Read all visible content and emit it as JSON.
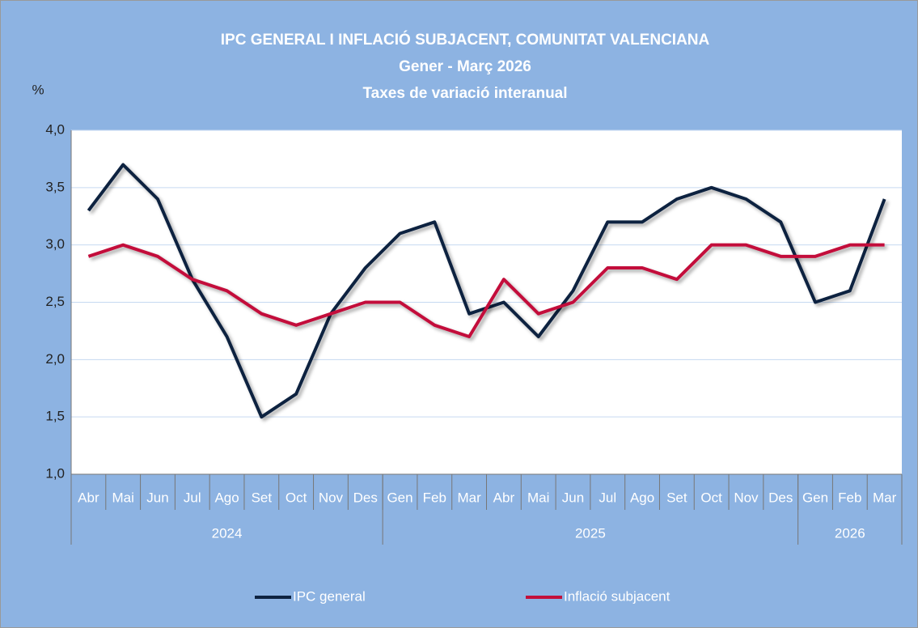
{
  "chart_data": {
    "type": "line",
    "title": [
      "IPC GENERAL I INFLACIÓ SUBJACENT, COMUNITAT VALENCIANA",
      "Gener - Març 2026",
      "Taxes de variació interanual"
    ],
    "y_label": "%",
    "categories": [
      "Abr",
      "Mai",
      "Jun",
      "Jul",
      "Ago",
      "Set",
      "Oct",
      "Nov",
      "Des",
      "Gen",
      "Feb",
      "Mar",
      "Abr",
      "Mai",
      "Jun",
      "Jul",
      "Ago",
      "Set",
      "Oct",
      "Nov",
      "Des",
      "Gen",
      "Feb",
      "Mar"
    ],
    "groups": [
      {
        "label": "2024",
        "span": 9
      },
      {
        "label": "2025",
        "span": 12
      },
      {
        "label": "2026",
        "span": 3
      }
    ],
    "series": [
      {
        "name": "IPC general",
        "color": "#0e2341",
        "values": [
          3.3,
          3.7,
          3.4,
          2.7,
          2.2,
          1.5,
          1.7,
          2.4,
          2.8,
          3.1,
          3.2,
          2.4,
          2.5,
          2.2,
          2.6,
          3.2,
          3.2,
          3.4,
          3.5,
          3.4,
          3.2,
          2.5,
          2.6,
          3.4
        ]
      },
      {
        "name": "Inflació subjacent",
        "color": "#c3103b",
        "values": [
          2.9,
          3.0,
          2.9,
          2.7,
          2.6,
          2.4,
          2.3,
          2.4,
          2.5,
          2.5,
          2.3,
          2.2,
          2.7,
          2.4,
          2.5,
          2.8,
          2.8,
          2.7,
          3.0,
          3.0,
          2.9,
          2.9,
          3.0,
          3.0
        ]
      }
    ],
    "ylim": [
      1,
      4
    ],
    "yticks": [
      {
        "value": 1,
        "label": "1,0"
      },
      {
        "value": 1.5,
        "label": "1,5"
      },
      {
        "value": 2,
        "label": "2,0"
      },
      {
        "value": 2.5,
        "label": "2,5"
      },
      {
        "value": 3,
        "label": "3,0"
      },
      {
        "value": 3.5,
        "label": "3,5"
      },
      {
        "value": 4,
        "label": "4,0"
      }
    ],
    "grid": true
  }
}
